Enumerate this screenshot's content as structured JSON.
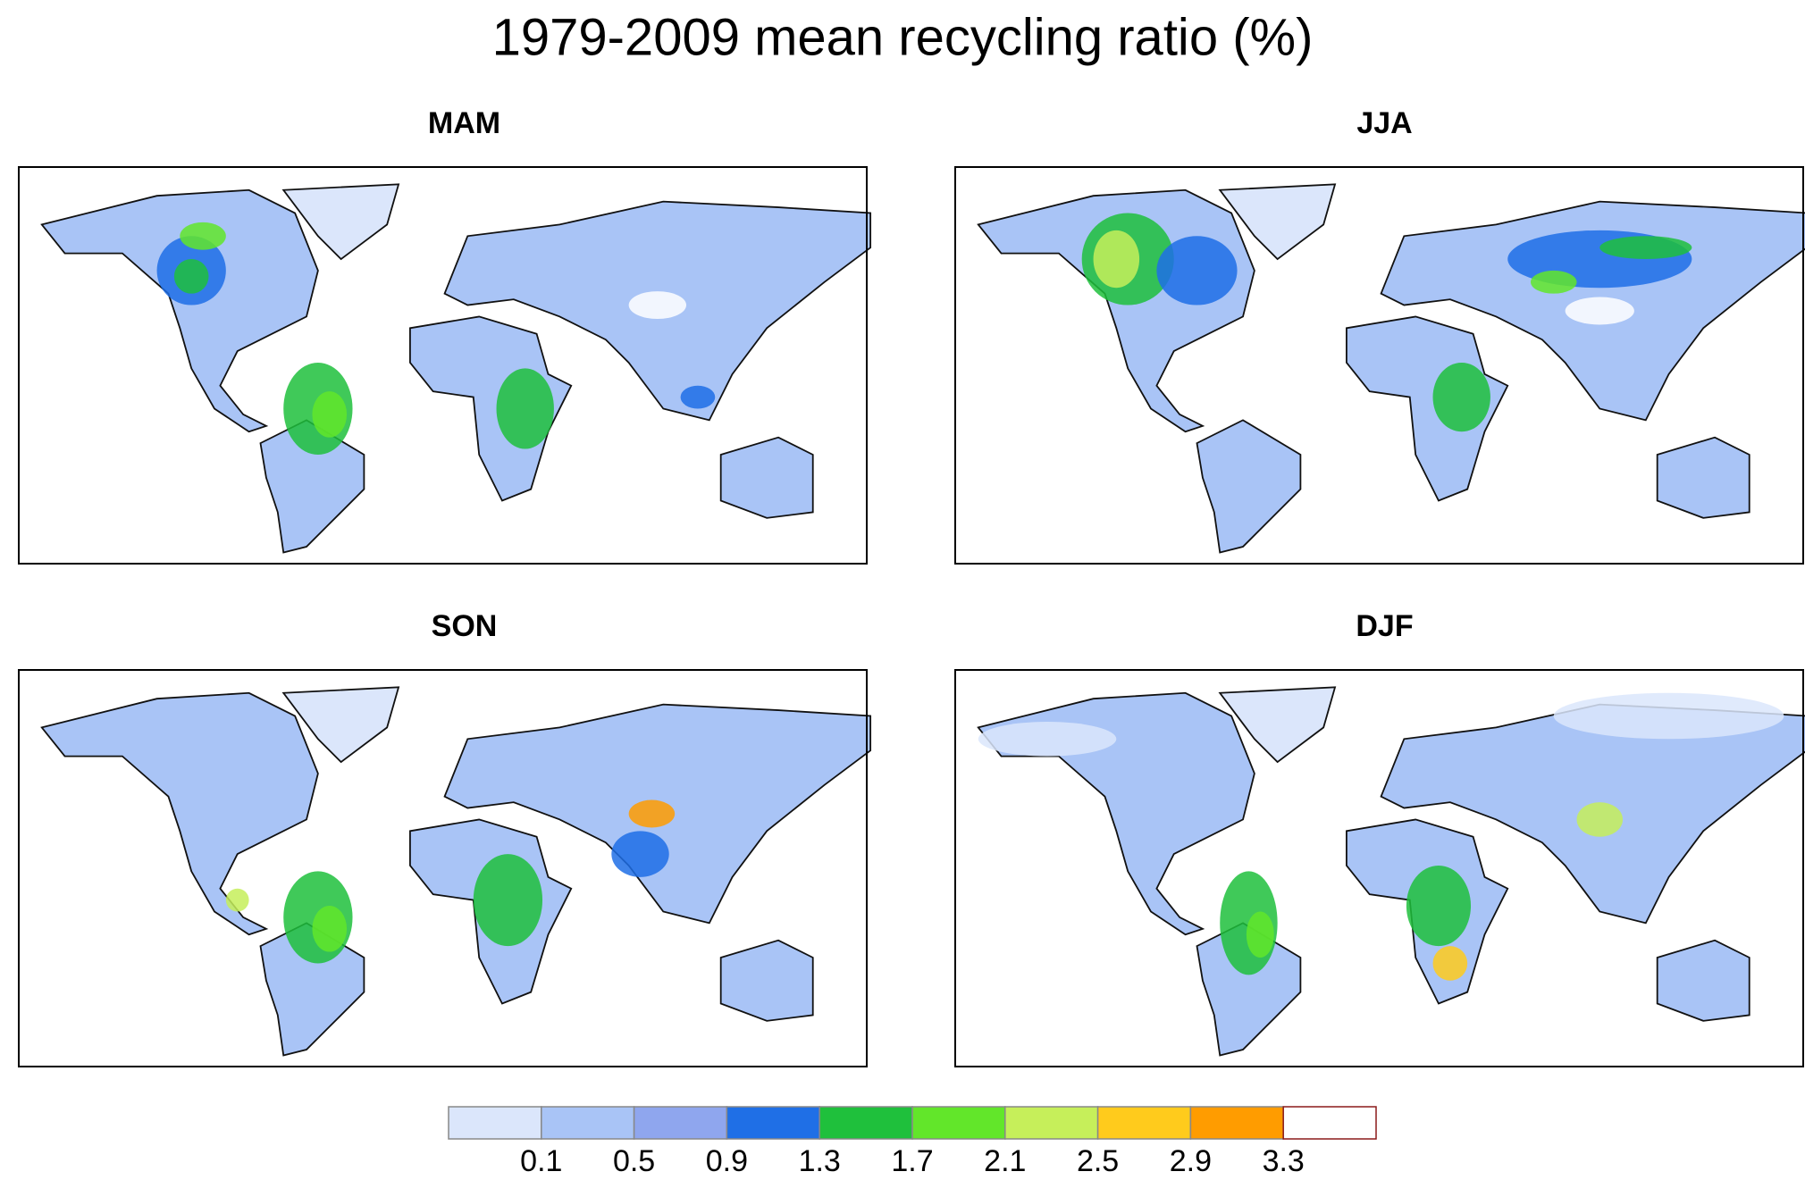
{
  "chart_data": {
    "type": "map",
    "title": "1979-2009 mean recycling ratio (%)",
    "panels": [
      {
        "title": "MAM"
      },
      {
        "title": "JJA"
      },
      {
        "title": "SON"
      },
      {
        "title": "DJF"
      }
    ],
    "colorbar": {
      "levels": [
        0.1,
        0.5,
        0.9,
        1.3,
        1.7,
        2.1,
        2.5,
        2.9,
        3.3
      ],
      "colors": [
        "#dbe6fb",
        "#a9c4f6",
        "#8fa6ee",
        "#1f6fe6",
        "#1fc03c",
        "#62e62a",
        "#c6ef5a",
        "#ffcb1c",
        "#ff9c00",
        "#ffffff"
      ]
    }
  }
}
